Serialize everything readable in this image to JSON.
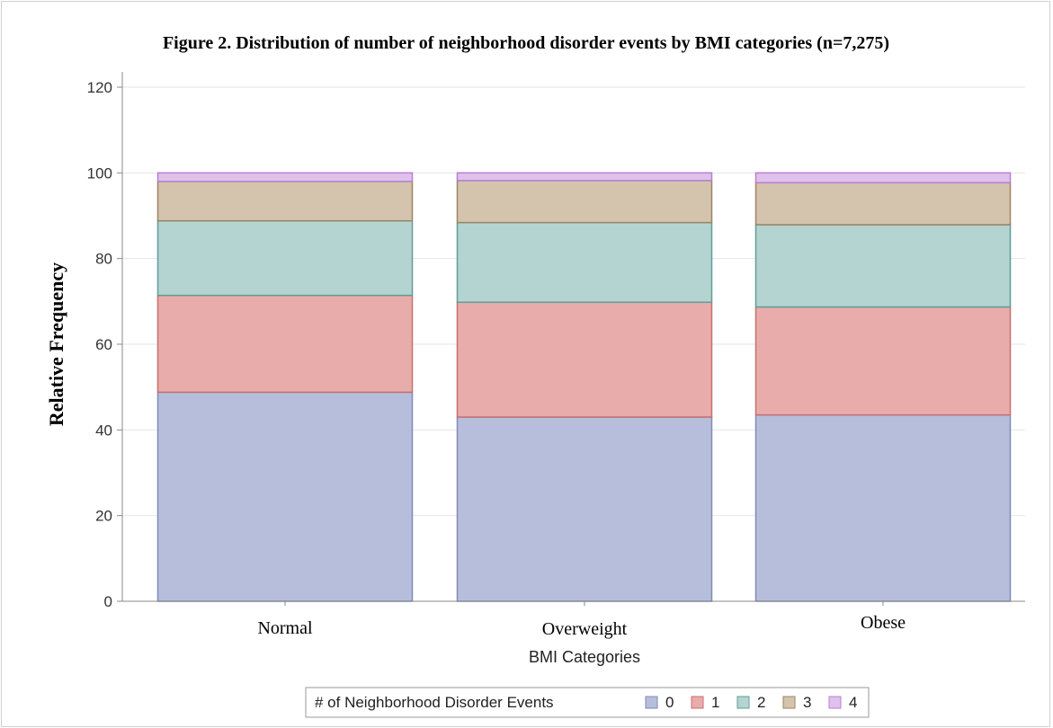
{
  "chart_data": {
    "type": "bar",
    "stacked": true,
    "title": "Figure 2. Distribution of number of neighborhood disorder events by BMI categories (n=7,275)",
    "xlabel": "BMI Categories",
    "ylabel": "Relative Frequency",
    "ylim": [
      0,
      120
    ],
    "yticks": [
      "0",
      "20",
      "40",
      "60",
      "80",
      "100",
      "120"
    ],
    "grid": true,
    "categories": [
      "Normal",
      "Overweight",
      "Obese"
    ],
    "legend_title": "# of Neighborhood Disorder Events",
    "legend_position": "bottom",
    "series": [
      {
        "name": "0",
        "values": [
          48.8,
          43.0,
          43.5
        ],
        "fill": "#b6bedb",
        "stroke": "#7f8bb9"
      },
      {
        "name": "1",
        "values": [
          22.6,
          26.8,
          25.2
        ],
        "fill": "#e8adab",
        "stroke": "#c86f6d"
      },
      {
        "name": "2",
        "values": [
          17.4,
          18.6,
          19.2
        ],
        "fill": "#b4d4d2",
        "stroke": "#5f9e98"
      },
      {
        "name": "3",
        "values": [
          9.2,
          9.8,
          9.8
        ],
        "fill": "#d4c4ad",
        "stroke": "#9c8566"
      },
      {
        "name": "4",
        "values": [
          2.0,
          1.8,
          2.3
        ],
        "fill": "#dfc2ec",
        "stroke": "#b87fd3"
      }
    ]
  }
}
